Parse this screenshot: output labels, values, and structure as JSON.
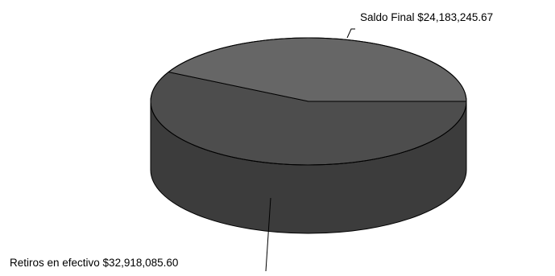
{
  "chart_data": {
    "type": "pie",
    "style": "3d",
    "categories": [
      "Saldo Final",
      "Retiros en efectivo"
    ],
    "values": [
      24183245.67,
      32918085.6
    ],
    "labels": [
      "Saldo Final $24,183,245.67",
      "Retiros en efectivo $32,918,085.60"
    ],
    "colors": {
      "Saldo Final": "#666666",
      "Retiros en efectivo": "#4d4d4d",
      "side": "#3c3c3c",
      "outline": "#000000"
    },
    "title": "",
    "legend": "none"
  }
}
